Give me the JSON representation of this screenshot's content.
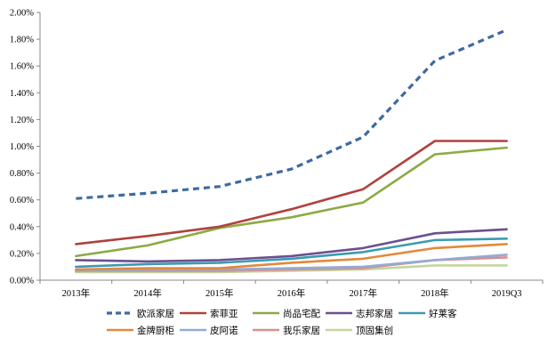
{
  "chart_data": {
    "type": "line",
    "title": "",
    "xlabel": "",
    "ylabel": "",
    "categories": [
      "2013年",
      "2014年",
      "2015年",
      "2016年",
      "2017年",
      "2018年",
      "2019Q3"
    ],
    "ylim": [
      0,
      2.0
    ],
    "yticks": [
      "0.00%",
      "0.20%",
      "0.40%",
      "0.60%",
      "0.80%",
      "1.00%",
      "1.20%",
      "1.40%",
      "1.60%",
      "1.80%",
      "2.00%"
    ],
    "y_unit": "%",
    "grid": false,
    "legend_position": "bottom",
    "series": [
      {
        "name": "欧派家居",
        "color": "#3f6aa0",
        "dashed": true,
        "values": [
          0.61,
          0.65,
          0.7,
          0.83,
          1.07,
          1.64,
          1.87
        ]
      },
      {
        "name": "索菲亚",
        "color": "#b0413e",
        "dashed": false,
        "values": [
          0.27,
          0.33,
          0.4,
          0.53,
          0.68,
          1.04,
          1.04
        ]
      },
      {
        "name": "尚品宅配",
        "color": "#8caa45",
        "dashed": false,
        "values": [
          0.18,
          0.26,
          0.39,
          0.47,
          0.58,
          0.94,
          0.99
        ]
      },
      {
        "name": "志邦家居",
        "color": "#6d4f8f",
        "dashed": false,
        "values": [
          0.15,
          0.14,
          0.15,
          0.18,
          0.24,
          0.35,
          0.38
        ]
      },
      {
        "name": "好莱客",
        "color": "#3a9bb1",
        "dashed": false,
        "values": [
          0.1,
          0.12,
          0.13,
          0.16,
          0.21,
          0.3,
          0.31
        ]
      },
      {
        "name": "金牌厨柜",
        "color": "#e4883a",
        "dashed": false,
        "values": [
          0.08,
          0.09,
          0.09,
          0.13,
          0.16,
          0.24,
          0.27
        ]
      },
      {
        "name": "皮阿诺",
        "color": "#93abd3",
        "dashed": false,
        "values": [
          0.07,
          0.08,
          0.08,
          0.09,
          0.1,
          0.15,
          0.19
        ]
      },
      {
        "name": "我乐家居",
        "color": "#d88f8c",
        "dashed": false,
        "values": [
          0.07,
          0.07,
          0.07,
          0.08,
          0.09,
          0.15,
          0.17
        ]
      },
      {
        "name": "顶固集创",
        "color": "#c3d69b",
        "dashed": false,
        "values": [
          0.06,
          0.06,
          0.06,
          0.07,
          0.08,
          0.11,
          0.11
        ]
      }
    ]
  }
}
